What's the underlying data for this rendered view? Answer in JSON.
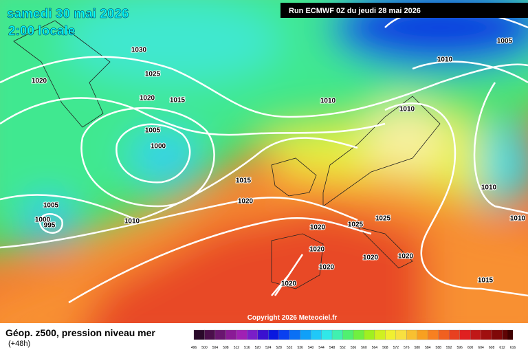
{
  "header": {
    "date": "samedi 30 mai 2026",
    "time": "2:00 locale",
    "run": "Run ECMWF 0Z du jeudi 28 mai 2026"
  },
  "map": {
    "isobar_labels": [
      "1030",
      "1025",
      "1020",
      "1020",
      "1015",
      "1005",
      "1000",
      "1010",
      "1010",
      "1010",
      "1005",
      "1015",
      "1020",
      "1010",
      "1005",
      "1000",
      "995",
      "1010",
      "1010",
      "1020",
      "1025",
      "1025",
      "1020",
      "1020",
      "1020",
      "1020",
      "1020",
      "1015"
    ],
    "copyright": "Copyright 2026 Meteociel.fr"
  },
  "footer": {
    "title": "Géop. z500, pression niveau mer",
    "lead": "(+48h)"
  },
  "colorbar": [
    {
      "label": "496",
      "color": "#2a0a2a"
    },
    {
      "label": "500",
      "color": "#4b0f4b"
    },
    {
      "label": "504",
      "color": "#6a1670"
    },
    {
      "label": "508",
      "color": "#8a1a96"
    },
    {
      "label": "512",
      "color": "#a020b4"
    },
    {
      "label": "516",
      "color": "#7a1ec8"
    },
    {
      "label": "520",
      "color": "#3a10d0"
    },
    {
      "label": "524",
      "color": "#0a18e0"
    },
    {
      "label": "528",
      "color": "#0a40f0"
    },
    {
      "label": "532",
      "color": "#0a70f5"
    },
    {
      "label": "536",
      "color": "#10a0f8"
    },
    {
      "label": "540",
      "color": "#20c8f8"
    },
    {
      "label": "544",
      "color": "#30e8e8"
    },
    {
      "label": "548",
      "color": "#40f0b0"
    },
    {
      "label": "552",
      "color": "#50f070"
    },
    {
      "label": "556",
      "color": "#70f040"
    },
    {
      "label": "560",
      "color": "#a0f020"
    },
    {
      "label": "564",
      "color": "#d0f020"
    },
    {
      "label": "568",
      "color": "#f0f030"
    },
    {
      "label": "572",
      "color": "#f8e040"
    },
    {
      "label": "576",
      "color": "#f8c030"
    },
    {
      "label": "580",
      "color": "#f8a020"
    },
    {
      "label": "584",
      "color": "#f88020"
    },
    {
      "label": "588",
      "color": "#f06020"
    },
    {
      "label": "592",
      "color": "#e84020"
    },
    {
      "label": "596",
      "color": "#e02020"
    },
    {
      "label": "600",
      "color": "#c01818"
    },
    {
      "label": "604",
      "color": "#a01010"
    },
    {
      "label": "608",
      "color": "#800808"
    },
    {
      "label": "612",
      "color": "#600404"
    },
    {
      "label": "616",
      "color": "#400000"
    }
  ]
}
